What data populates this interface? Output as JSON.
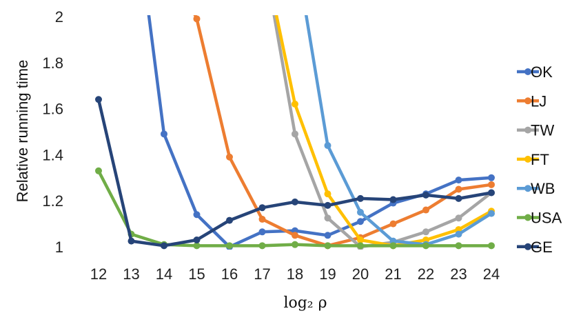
{
  "chart_data": {
    "type": "line",
    "title": "",
    "xlabel": "log₂ ρ",
    "ylabel": "Relative running time",
    "categories": [
      "12",
      "13",
      "14",
      "15",
      "16",
      "17",
      "18",
      "19",
      "20",
      "21",
      "22",
      "23",
      "24"
    ],
    "ylim": [
      1,
      2
    ],
    "yticks": [
      "1",
      "1.2",
      "1.4",
      "1.6",
      "1.8",
      "2"
    ],
    "grid": false,
    "legend_position": "right",
    "series": [
      {
        "name": "OK",
        "color": "#4472C4",
        "values": [
          null,
          2.6,
          1.49,
          1.14,
          1.0,
          1.065,
          1.07,
          1.05,
          1.11,
          1.19,
          1.23,
          1.29,
          1.3
        ]
      },
      {
        "name": "LJ",
        "color": "#ED7D31",
        "values": [
          null,
          null,
          null,
          1.99,
          1.39,
          1.12,
          1.05,
          1.005,
          1.04,
          1.1,
          1.16,
          1.25,
          1.27
        ]
      },
      {
        "name": "TW",
        "color": "#A5A5A5",
        "values": [
          null,
          null,
          null,
          null,
          null,
          null,
          1.49,
          1.125,
          1.0,
          1.02,
          1.065,
          1.125,
          1.235
        ]
      },
      {
        "name": "FT",
        "color": "#FFC000",
        "values": [
          null,
          null,
          null,
          null,
          null,
          null,
          1.62,
          1.23,
          1.03,
          1.005,
          1.03,
          1.075,
          1.155
        ]
      },
      {
        "name": "WB",
        "color": "#5B9BD5",
        "values": [
          null,
          null,
          null,
          null,
          null,
          null,
          null,
          1.44,
          1.15,
          1.025,
          1.01,
          1.055,
          1.145
        ]
      },
      {
        "name": "USA",
        "color": "#70AD47",
        "values": [
          1.33,
          1.055,
          1.01,
          1.005,
          1.005,
          1.005,
          1.01,
          1.005,
          1.005,
          1.005,
          1.005,
          1.005,
          1.005
        ]
      },
      {
        "name": "GE",
        "color": "#264478",
        "values": [
          1.64,
          1.025,
          1.005,
          1.03,
          1.115,
          1.17,
          1.195,
          1.18,
          1.21,
          1.205,
          1.225,
          1.21,
          1.235
        ]
      }
    ],
    "offscale_from": {
      "OK": 2.6,
      "LJ": 2.3,
      "TW": 2.3,
      "FT": 2.3,
      "WB": 2.3
    }
  }
}
